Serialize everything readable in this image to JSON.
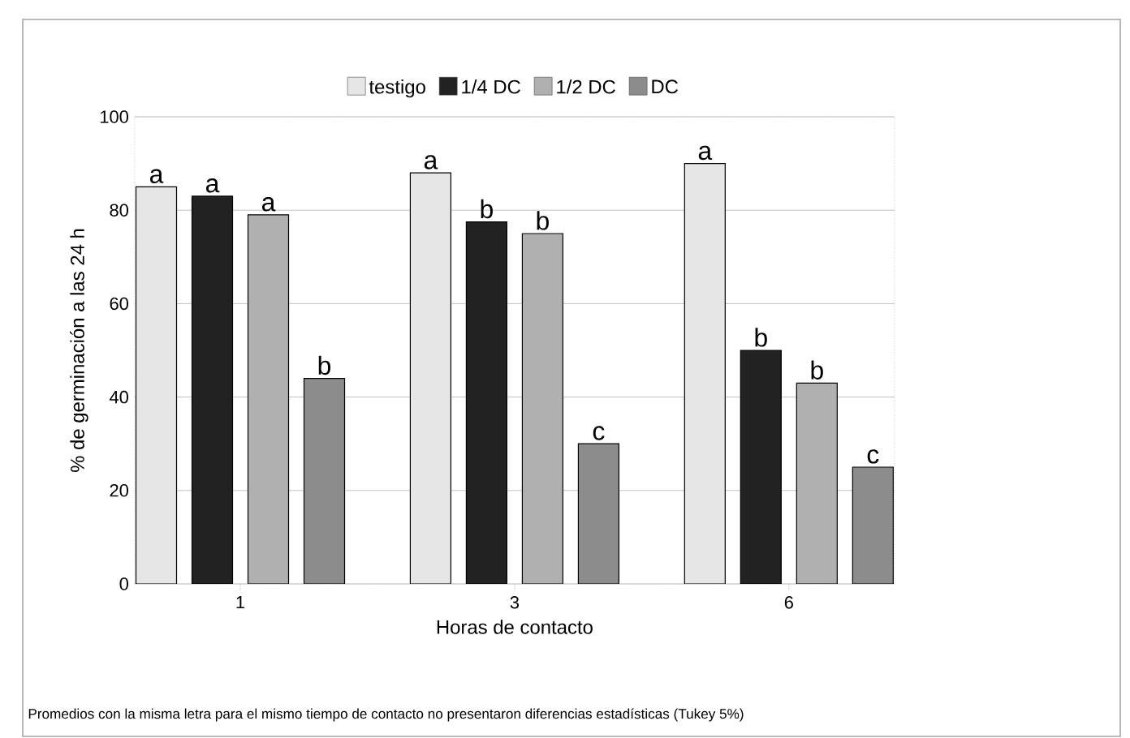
{
  "chart_data": {
    "type": "bar",
    "categories": [
      "1",
      "3",
      "6"
    ],
    "xlabel": "Horas de contacto",
    "ylabel": "% de germinación a las 24 h",
    "series": [
      {
        "name": "testigo",
        "color": "#e6e6e6",
        "values": [
          85,
          88,
          90
        ]
      },
      {
        "name": "1/4 DC",
        "color": "#222222",
        "values": [
          83,
          77.5,
          50
        ]
      },
      {
        "name": "1/2 DC",
        "color": "#b0b0b0",
        "values": [
          79,
          75,
          43
        ]
      },
      {
        "name": "DC",
        "color": "#8c8c8c",
        "values": [
          44,
          30,
          25
        ]
      }
    ],
    "ylim": [
      0,
      100
    ],
    "yticks": [
      0,
      20,
      40,
      60,
      80,
      100
    ],
    "grid": "y",
    "legend": "top",
    "annotations": [
      "a",
      "a",
      "a",
      "b",
      "a",
      "b",
      "b",
      "c",
      "a",
      "b",
      "b",
      "c",
      "Promedios con la misma letra para el mismo tiempo de contacto no presentaron diferencias estadísticas (Tukey 5%)"
    ]
  }
}
